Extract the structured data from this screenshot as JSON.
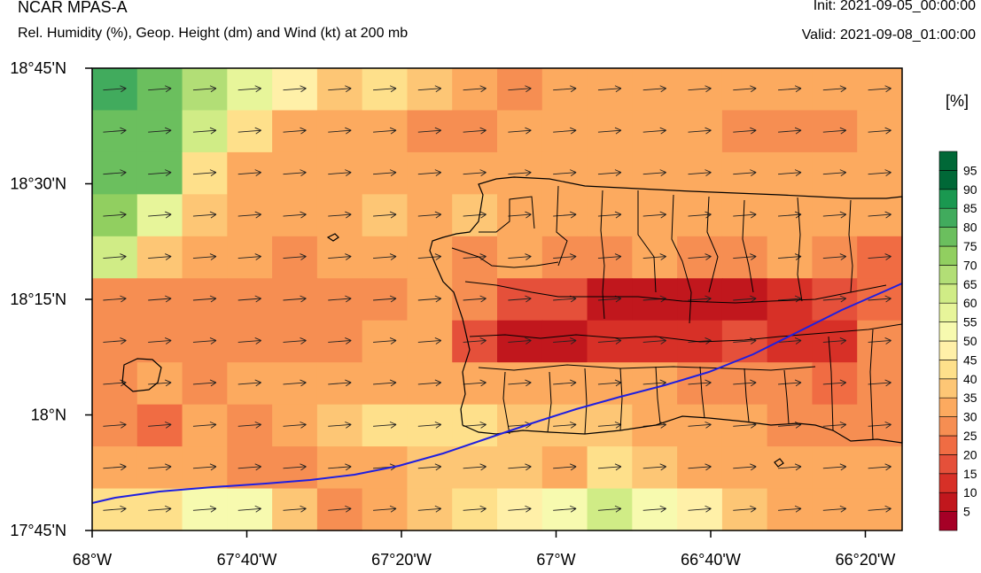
{
  "header": {
    "model": "NCAR MPAS-A",
    "description": "Rel. Humidity (%), Geop. Height (dm) and Wind (kt) at 200 mb",
    "init": "Init: 2021-09-05_00:00:00",
    "valid": "Valid: 2021-09-08_01:00:00"
  },
  "colorbar": {
    "unit": "[%]",
    "labels": [
      "5",
      "10",
      "15",
      "20",
      "25",
      "30",
      "35",
      "40",
      "45",
      "50",
      "55",
      "60",
      "65",
      "70",
      "75",
      "80",
      "85",
      "90",
      "95"
    ],
    "colors": [
      "#a50026",
      "#c1171d",
      "#d73027",
      "#e5503a",
      "#f06c43",
      "#f68e52",
      "#fcaa5f",
      "#fdc675",
      "#fee08b",
      "#fff0a8",
      "#f7faaf",
      "#e7f59a",
      "#d0ec86",
      "#b2de76",
      "#91cf60",
      "#6bbf5e",
      "#41ab5d",
      "#1a9850",
      "#006837"
    ]
  },
  "map": {
    "lat_labels": [
      "18°45'N",
      "18°30'N",
      "18°15'N",
      "18°N",
      "17°45'N"
    ],
    "lon_labels": [
      "68°W",
      "67°40'W",
      "67°20'W",
      "67°W",
      "66°40'W",
      "66°20'W"
    ],
    "rh_grid": [
      [
        85,
        80,
        70,
        60,
        50,
        40,
        45,
        40,
        35,
        30,
        35,
        35,
        35,
        35,
        35,
        35,
        35,
        35
      ],
      [
        80,
        80,
        65,
        45,
        35,
        35,
        35,
        30,
        30,
        35,
        35,
        35,
        35,
        35,
        30,
        30,
        30,
        35
      ],
      [
        80,
        80,
        45,
        35,
        35,
        35,
        35,
        35,
        35,
        35,
        35,
        35,
        35,
        35,
        35,
        35,
        35,
        35
      ],
      [
        75,
        60,
        40,
        35,
        35,
        35,
        40,
        35,
        40,
        35,
        35,
        35,
        35,
        35,
        35,
        35,
        35,
        35
      ],
      [
        65,
        40,
        35,
        35,
        30,
        35,
        35,
        35,
        30,
        35,
        30,
        30,
        35,
        30,
        30,
        35,
        30,
        25
      ],
      [
        30,
        30,
        30,
        30,
        30,
        30,
        30,
        35,
        30,
        20,
        20,
        10,
        10,
        10,
        10,
        15,
        20,
        25
      ],
      [
        30,
        30,
        30,
        30,
        30,
        30,
        35,
        35,
        20,
        10,
        10,
        15,
        15,
        15,
        20,
        15,
        15,
        30
      ],
      [
        30,
        35,
        30,
        35,
        35,
        35,
        35,
        35,
        35,
        35,
        35,
        35,
        35,
        30,
        30,
        30,
        25,
        30
      ],
      [
        30,
        25,
        35,
        30,
        35,
        40,
        45,
        45,
        45,
        40,
        40,
        40,
        35,
        35,
        35,
        30,
        30,
        30
      ],
      [
        35,
        35,
        35,
        30,
        30,
        35,
        35,
        40,
        40,
        40,
        35,
        45,
        40,
        35,
        35,
        35,
        35,
        35
      ],
      [
        45,
        45,
        55,
        55,
        40,
        30,
        35,
        40,
        45,
        50,
        55,
        65,
        55,
        50,
        40,
        35,
        35,
        35
      ]
    ]
  }
}
